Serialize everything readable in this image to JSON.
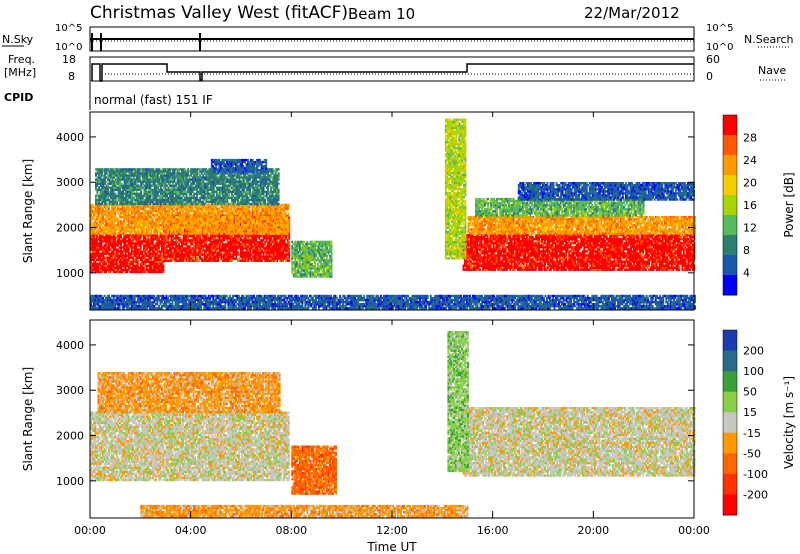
{
  "header": {
    "title": "Christmas Valley West (fitACF)",
    "beam": "Beam 10",
    "date": "22/Mar/2012"
  },
  "status_panels": {
    "nsky_label": "N.Sky",
    "nsearch_label": "N.Search",
    "noise_ticks": [
      "10^5",
      "10^0"
    ],
    "freq_label_1": "Freq.",
    "freq_label_2": "[MHz]",
    "freq_ticks": [
      "18",
      "8"
    ],
    "nave_label": "Nave",
    "nave_ticks": [
      "60",
      "0"
    ],
    "cpid_label": "CPID",
    "cpid_value": "normal (fast) 151 IF"
  },
  "chart_data": [
    {
      "type": "heatmap",
      "name": "power",
      "xlabel": "",
      "ylabel": "Slant Range [km]",
      "xlim": [
        0,
        24
      ],
      "ylim": [
        180,
        4550
      ],
      "xticks": [
        "00:00",
        "04:00",
        "08:00",
        "12:00",
        "16:00",
        "20:00",
        "00:00"
      ],
      "yticks": [
        1000,
        2000,
        3000,
        4000
      ],
      "colorbar": {
        "label": "Power [dB]",
        "ticks": [
          "28",
          "24",
          "20",
          "16",
          "12",
          "8",
          "4"
        ],
        "colors": [
          "#ff0000",
          "#ff5a00",
          "#ff9900",
          "#f5cc00",
          "#a8d400",
          "#58b85c",
          "#2e7d6e",
          "#1a5aa8",
          "#0000ff"
        ]
      },
      "regions": [
        {
          "t0": 0.0,
          "t1": 2.9,
          "r0": 1000,
          "r1": 1850,
          "level": 0
        },
        {
          "t0": 2.9,
          "t1": 7.9,
          "r0": 1250,
          "r1": 2250,
          "level": 0
        },
        {
          "t0": 0.0,
          "t1": 7.9,
          "r0": 1850,
          "r1": 2500,
          "level": 2
        },
        {
          "t0": 0.2,
          "t1": 7.5,
          "r0": 2500,
          "r1": 3300,
          "level": 6
        },
        {
          "t0": 4.8,
          "t1": 7.0,
          "r0": 3200,
          "r1": 3500,
          "level": 7
        },
        {
          "t0": 8.0,
          "t1": 9.6,
          "r0": 900,
          "r1": 1700,
          "level": 5
        },
        {
          "t0": 14.8,
          "t1": 24.0,
          "r0": 1050,
          "r1": 1850,
          "level": 0
        },
        {
          "t0": 15.0,
          "t1": 24.0,
          "r0": 1850,
          "r1": 2250,
          "level": 2
        },
        {
          "t0": 15.3,
          "t1": 22.0,
          "r0": 2250,
          "r1": 2650,
          "level": 5
        },
        {
          "t0": 17.0,
          "t1": 24.0,
          "r0": 2600,
          "r1": 3000,
          "level": 7
        },
        {
          "t0": 14.1,
          "t1": 14.9,
          "r0": 1300,
          "r1": 4400,
          "level": 4
        },
        {
          "t0": 0.0,
          "t1": 24.0,
          "r0": 200,
          "r1": 480,
          "level": 7
        }
      ]
    },
    {
      "type": "heatmap",
      "name": "velocity",
      "xlabel": "Time UT",
      "ylabel": "Slant Range [km]",
      "xlim": [
        0,
        24
      ],
      "ylim": [
        180,
        4550
      ],
      "xticks": [
        "00:00",
        "04:00",
        "08:00",
        "12:00",
        "16:00",
        "20:00",
        "00:00"
      ],
      "yticks": [
        1000,
        2000,
        3000,
        4000
      ],
      "colorbar": {
        "label": "Velocity [m s⁻¹]",
        "ticks": [
          "200",
          "100",
          "50",
          "15",
          "-15",
          "-50",
          "-100",
          "-200"
        ],
        "colors": [
          "#1a3cb0",
          "#2a6a8a",
          "#3aa03a",
          "#88d048",
          "#c8c8c0",
          "#ff9900",
          "#ff6600",
          "#ff3300",
          "#ff0000"
        ]
      },
      "regions": [
        {
          "t0": 0.0,
          "t1": 7.9,
          "r0": 1000,
          "r1": 2500,
          "level": 4
        },
        {
          "t0": 0.3,
          "t1": 7.5,
          "r0": 2500,
          "r1": 3400,
          "level": 5
        },
        {
          "t0": 8.0,
          "t1": 9.8,
          "r0": 700,
          "r1": 1750,
          "level": 6
        },
        {
          "t0": 14.8,
          "t1": 24.0,
          "r0": 1100,
          "r1": 2600,
          "level": 4
        },
        {
          "t0": 14.2,
          "t1": 15.0,
          "r0": 1200,
          "r1": 4300,
          "level": 3
        },
        {
          "t0": 2.0,
          "t1": 15.0,
          "r0": 200,
          "r1": 450,
          "level": 5
        }
      ]
    }
  ]
}
